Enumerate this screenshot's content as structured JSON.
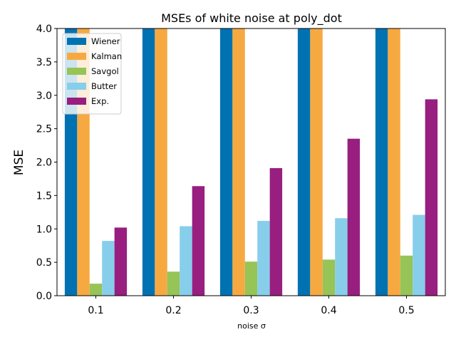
{
  "chart_data": {
    "type": "bar",
    "title": "MSEs of white noise at poly_dot",
    "xlabel": "noise σ",
    "ylabel": "MSE",
    "categories": [
      "0.1",
      "0.2",
      "0.3",
      "0.4",
      "0.5"
    ],
    "ylim": [
      0,
      4.0
    ],
    "yticks": [
      "0.0",
      "0.5",
      "1.0",
      "1.5",
      "2.0",
      "2.5",
      "3.0",
      "3.5",
      "4.0"
    ],
    "grid": false,
    "legend_position": "top-left",
    "series": [
      {
        "name": "Wiener",
        "color": "#0072b2",
        "values": [
          4.0,
          4.0,
          4.0,
          4.0,
          4.0
        ]
      },
      {
        "name": "Kalman",
        "color": "#f7a941",
        "values": [
          4.0,
          4.0,
          4.0,
          4.0,
          4.0
        ]
      },
      {
        "name": "Savgol",
        "color": "#96c457",
        "values": [
          0.18,
          0.36,
          0.51,
          0.54,
          0.6
        ]
      },
      {
        "name": "Butter",
        "color": "#87ceeb",
        "values": [
          0.82,
          1.04,
          1.12,
          1.16,
          1.21
        ]
      },
      {
        "name": "Exp.",
        "color": "#981e7f",
        "values": [
          1.02,
          1.64,
          1.91,
          2.35,
          2.94
        ]
      }
    ]
  }
}
